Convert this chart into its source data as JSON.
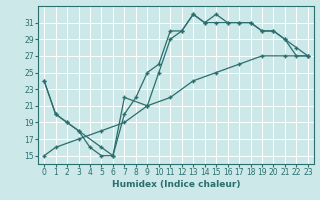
{
  "xlabel": "Humidex (Indice chaleur)",
  "ylabel": "",
  "bg_color": "#cde8e8",
  "grid_color": "#b8d4d4",
  "line_color": "#2a6e6e",
  "xlim": [
    -0.5,
    23.5
  ],
  "ylim": [
    14,
    33
  ],
  "xticks": [
    0,
    1,
    2,
    3,
    4,
    5,
    6,
    7,
    8,
    9,
    10,
    11,
    12,
    13,
    14,
    15,
    16,
    17,
    18,
    19,
    20,
    21,
    22,
    23
  ],
  "yticks": [
    15,
    17,
    19,
    21,
    23,
    25,
    27,
    29,
    31
  ],
  "line1_x": [
    0,
    1,
    2,
    3,
    4,
    5,
    6,
    7,
    8,
    9,
    10,
    11,
    12,
    13,
    14,
    15,
    16,
    17,
    18,
    19,
    20,
    21,
    22,
    23
  ],
  "line1_y": [
    24,
    20,
    19,
    18,
    16,
    15,
    15,
    20,
    22,
    25,
    26,
    30,
    30,
    32,
    31,
    32,
    31,
    31,
    31,
    30,
    30,
    29,
    28,
    27
  ],
  "line2_x": [
    0,
    1,
    2,
    3,
    5,
    6,
    7,
    9,
    10,
    11,
    12,
    13,
    14,
    15,
    16,
    17,
    18,
    19,
    20,
    21,
    22,
    23
  ],
  "line2_y": [
    24,
    20,
    19,
    18,
    16,
    15,
    22,
    21,
    25,
    29,
    30,
    32,
    31,
    31,
    31,
    31,
    31,
    30,
    30,
    29,
    27,
    27
  ],
  "line3_x": [
    0,
    1,
    3,
    5,
    7,
    9,
    11,
    13,
    15,
    17,
    19,
    21,
    23
  ],
  "line3_y": [
    15,
    16,
    17,
    18,
    19,
    21,
    22,
    24,
    25,
    26,
    27,
    27,
    27
  ]
}
